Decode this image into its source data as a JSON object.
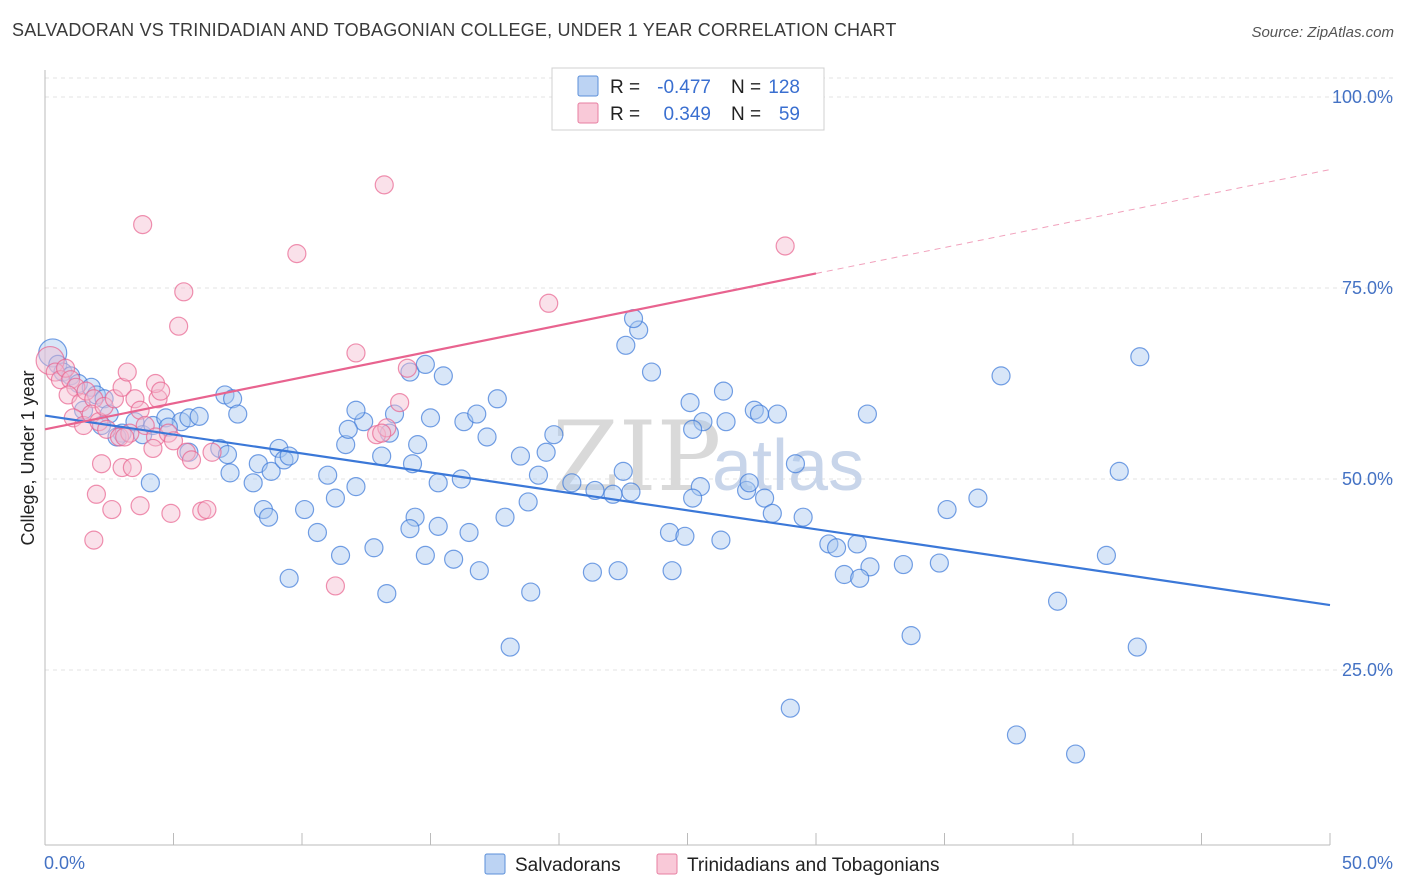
{
  "header": {
    "title": "SALVADORAN VS TRINIDADIAN AND TOBAGONIAN COLLEGE, UNDER 1 YEAR CORRELATION CHART",
    "source": "Source: ZipAtlas.com"
  },
  "watermark": {
    "zip": "ZIP",
    "atlas": "atlas"
  },
  "legend_box": {
    "rows": [
      {
        "r_label": "R =",
        "r_value": "-0.477",
        "n_label": "N =",
        "n_value": "128",
        "color": "#8fb3e8"
      },
      {
        "r_label": "R =",
        "r_value": "0.349",
        "n_label": "N =",
        "n_value": "59",
        "color": "#f0a3bc"
      }
    ]
  },
  "bottom_legend": [
    {
      "label": "Salvadorans",
      "color": "#8fb3e8"
    },
    {
      "label": "Trinidadians and Tobagonians",
      "color": "#f0a3bc"
    }
  ],
  "chart_data": {
    "type": "scatter",
    "title": "SALVADORAN VS TRINIDADIAN AND TOBAGONIAN COLLEGE, UNDER 1 YEAR CORRELATION CHART",
    "xlabel": "",
    "ylabel": "College, Under 1 year",
    "xlim": [
      0,
      50
    ],
    "ylim": [
      0,
      105
    ],
    "x_tick_labels": [
      "0.0%",
      "50.0%"
    ],
    "y_ticks": [
      25,
      50,
      75,
      100
    ],
    "y_tick_labels": [
      "25.0%",
      "50.0%",
      "75.0%",
      "100.0%"
    ],
    "grid": true,
    "legend": "top-center",
    "series": [
      {
        "name": "Salvadorans",
        "color": "#3b78d8",
        "fill": "#a9c7ef",
        "R": -0.477,
        "N": 128,
        "trend": {
          "x": [
            0,
            50
          ],
          "y": [
            58.3,
            33.5
          ],
          "dashed_from": null
        },
        "points": [
          [
            0.3,
            66.5
          ],
          [
            0.5,
            65
          ],
          [
            0.7,
            64
          ],
          [
            1,
            63.5
          ],
          [
            1.3,
            62.5
          ],
          [
            1.8,
            62
          ],
          [
            2,
            61
          ],
          [
            2.3,
            60.5
          ],
          [
            1.5,
            59
          ],
          [
            2.5,
            58.5
          ],
          [
            2.2,
            57
          ],
          [
            3.5,
            57.5
          ],
          [
            3,
            56
          ],
          [
            3.8,
            55.8
          ],
          [
            4.2,
            57
          ],
          [
            4.7,
            58
          ],
          [
            5.3,
            57.5
          ],
          [
            5.6,
            58
          ],
          [
            6,
            58.2
          ],
          [
            4.8,
            56.8
          ],
          [
            2.8,
            55.5
          ],
          [
            5.6,
            53.5
          ],
          [
            6.8,
            54
          ],
          [
            7.1,
            53.2
          ],
          [
            7.2,
            50.8
          ],
          [
            7,
            61
          ],
          [
            7.3,
            60.5
          ],
          [
            7.5,
            58.5
          ],
          [
            8.3,
            52
          ],
          [
            8.8,
            51
          ],
          [
            9.1,
            54
          ],
          [
            9.3,
            52.5
          ],
          [
            8.1,
            49.5
          ],
          [
            4.1,
            49.5
          ],
          [
            11,
            50.5
          ],
          [
            9.5,
            53
          ],
          [
            11.7,
            54.5
          ],
          [
            12.4,
            57.5
          ],
          [
            11.8,
            56.5
          ],
          [
            12.1,
            59
          ],
          [
            13.4,
            56
          ],
          [
            13.1,
            53
          ],
          [
            14.5,
            54.5
          ],
          [
            15,
            58
          ],
          [
            13.6,
            58.5
          ],
          [
            14.3,
            52
          ],
          [
            15.3,
            49.5
          ],
          [
            16.3,
            57.5
          ],
          [
            16.8,
            58.5
          ],
          [
            17.2,
            55.5
          ],
          [
            14.2,
            64
          ],
          [
            14.8,
            65
          ],
          [
            15.5,
            63.5
          ],
          [
            17.6,
            60.5
          ],
          [
            18.5,
            53
          ],
          [
            16.2,
            50
          ],
          [
            12.1,
            49
          ],
          [
            11.3,
            47.5
          ],
          [
            10.1,
            46
          ],
          [
            8.5,
            46
          ],
          [
            8.7,
            45
          ],
          [
            9.5,
            37
          ],
          [
            10.6,
            43
          ],
          [
            11.5,
            40
          ],
          [
            12.8,
            41
          ],
          [
            13.3,
            35
          ],
          [
            14.4,
            45
          ],
          [
            14.2,
            43.5
          ],
          [
            14.8,
            40
          ],
          [
            15.3,
            43.8
          ],
          [
            15.9,
            39.5
          ],
          [
            16.5,
            43
          ],
          [
            16.9,
            38
          ],
          [
            17.9,
            45
          ],
          [
            18.1,
            28
          ],
          [
            18.9,
            35.2
          ],
          [
            19.2,
            50.5
          ],
          [
            19.5,
            53.5
          ],
          [
            19.8,
            55.8
          ],
          [
            18.8,
            47
          ],
          [
            20.5,
            49.5
          ],
          [
            21.4,
            48.5
          ],
          [
            22.1,
            48
          ],
          [
            22.5,
            51
          ],
          [
            22.8,
            48.3
          ],
          [
            22.6,
            67.5
          ],
          [
            23.1,
            69.5
          ],
          [
            23.6,
            64
          ],
          [
            24.3,
            43
          ],
          [
            24.9,
            42.5
          ],
          [
            25.1,
            60
          ],
          [
            25.6,
            57.5
          ],
          [
            26.4,
            61.5
          ],
          [
            26.5,
            57.5
          ],
          [
            27.3,
            48.5
          ],
          [
            27.6,
            59
          ],
          [
            27.8,
            58.5
          ],
          [
            28,
            47.5
          ],
          [
            28.3,
            45.5
          ],
          [
            28.5,
            58.5
          ],
          [
            25.5,
            49
          ],
          [
            25.2,
            47.5
          ],
          [
            27.4,
            49.5
          ],
          [
            24.4,
            38
          ],
          [
            22.3,
            38
          ],
          [
            21.3,
            37.8
          ],
          [
            22.9,
            71
          ],
          [
            26.3,
            42
          ],
          [
            29.2,
            52
          ],
          [
            29.5,
            45
          ],
          [
            30.5,
            41.5
          ],
          [
            30.8,
            41
          ],
          [
            31.1,
            37.5
          ],
          [
            31.6,
            41.5
          ],
          [
            32.1,
            38.5
          ],
          [
            31.7,
            37
          ],
          [
            32,
            58.5
          ],
          [
            33.4,
            38.8
          ],
          [
            33.7,
            29.5
          ],
          [
            34.8,
            39
          ],
          [
            35.1,
            46
          ],
          [
            36.3,
            47.5
          ],
          [
            37.2,
            63.5
          ],
          [
            37.8,
            16.5
          ],
          [
            39.4,
            34
          ],
          [
            40.1,
            14
          ],
          [
            41.3,
            40
          ],
          [
            41.8,
            51
          ],
          [
            42.5,
            28
          ],
          [
            29,
            20
          ],
          [
            42.6,
            66
          ],
          [
            25.2,
            56.5
          ]
        ]
      },
      {
        "name": "Trinidadians and Tobagonians",
        "color": "#e8638f",
        "fill": "#f5bcd0",
        "R": 0.349,
        "N": 59,
        "trend": {
          "x": [
            0,
            50
          ],
          "y": [
            56.5,
            90.5
          ],
          "dashed_from": 30
        },
        "points": [
          [
            0.2,
            65.5
          ],
          [
            0.4,
            64
          ],
          [
            0.6,
            63
          ],
          [
            0.8,
            64.5
          ],
          [
            1,
            63
          ],
          [
            1.2,
            62
          ],
          [
            0.9,
            61
          ],
          [
            1.4,
            60
          ],
          [
            1.6,
            61.5
          ],
          [
            1.9,
            60.5
          ],
          [
            1.1,
            58
          ],
          [
            1.5,
            57
          ],
          [
            1.8,
            58.5
          ],
          [
            2.1,
            57.5
          ],
          [
            2.3,
            59.5
          ],
          [
            2.7,
            60.5
          ],
          [
            3,
            62
          ],
          [
            3.2,
            64
          ],
          [
            3.5,
            60.5
          ],
          [
            3.7,
            59
          ],
          [
            2.4,
            56.5
          ],
          [
            2.9,
            55.5
          ],
          [
            3.3,
            56
          ],
          [
            3.9,
            57
          ],
          [
            4.3,
            55.5
          ],
          [
            4.8,
            56
          ],
          [
            5,
            55
          ],
          [
            4.2,
            54
          ],
          [
            5.5,
            53.5
          ],
          [
            5.7,
            52.5
          ],
          [
            2.2,
            52
          ],
          [
            3,
            51.5
          ],
          [
            3.4,
            51.5
          ],
          [
            2,
            48
          ],
          [
            2.6,
            46
          ],
          [
            3.7,
            46.5
          ],
          [
            4.9,
            45.5
          ],
          [
            6.1,
            45.8
          ],
          [
            6.3,
            46
          ],
          [
            6.5,
            53.5
          ],
          [
            1.9,
            42
          ],
          [
            3.1,
            55.5
          ],
          [
            4.4,
            60.5
          ],
          [
            4.3,
            62.5
          ],
          [
            4.5,
            61.5
          ],
          [
            5.2,
            70
          ],
          [
            5.4,
            74.5
          ],
          [
            3.8,
            83.3
          ],
          [
            9.8,
            79.5
          ],
          [
            11.3,
            36
          ],
          [
            12.1,
            66.5
          ],
          [
            12.9,
            55.8
          ],
          [
            13.3,
            56.7
          ],
          [
            13.8,
            60
          ],
          [
            14.1,
            64.5
          ],
          [
            13.1,
            56
          ],
          [
            13.2,
            88.5
          ],
          [
            19.6,
            73
          ],
          [
            28.8,
            80.5
          ]
        ]
      }
    ]
  }
}
